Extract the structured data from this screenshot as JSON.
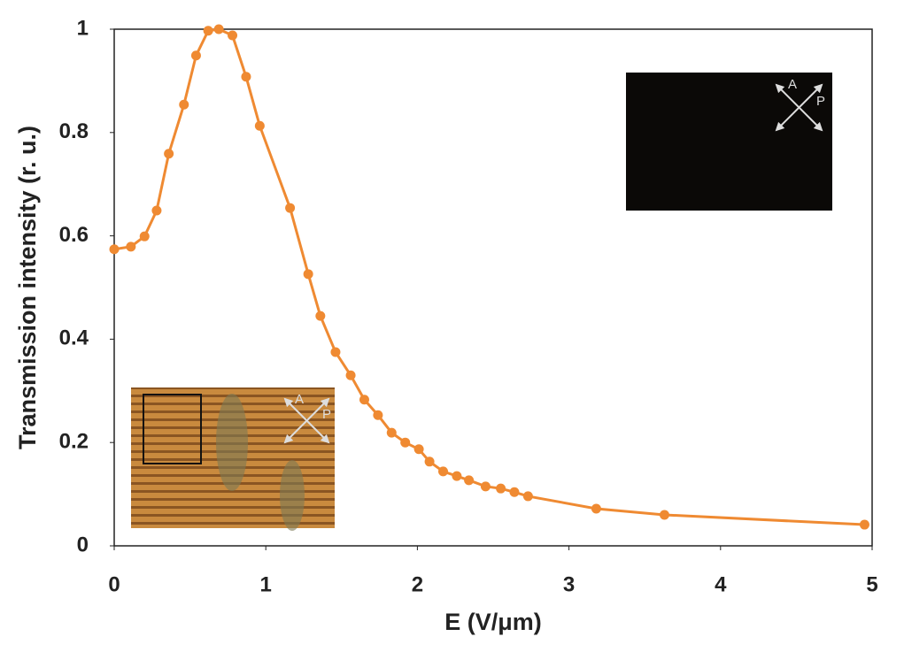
{
  "chart_data": {
    "type": "line",
    "x_label": "E (V/μm)",
    "y_label": "Transmission intensity (r. u.)",
    "x": [
      0,
      0.11,
      0.2,
      0.28,
      0.36,
      0.46,
      0.54,
      0.62,
      0.69,
      0.78,
      0.87,
      0.96,
      1.16,
      1.28,
      1.36,
      1.46,
      1.56,
      1.65,
      1.74,
      1.83,
      1.92,
      2.01,
      2.08,
      2.17,
      2.26,
      2.34,
      2.45,
      2.55,
      2.64,
      2.73,
      3.18,
      3.63,
      4.95
    ],
    "values": [
      0.574,
      0.579,
      0.599,
      0.649,
      0.759,
      0.854,
      0.949,
      0.997,
      1.0,
      0.988,
      0.908,
      0.813,
      0.654,
      0.526,
      0.445,
      0.375,
      0.33,
      0.283,
      0.253,
      0.219,
      0.2,
      0.187,
      0.163,
      0.144,
      0.135,
      0.127,
      0.115,
      0.111,
      0.104,
      0.096,
      0.072,
      0.06,
      0.041
    ],
    "color": "#ef8a32",
    "xlim": [
      0,
      5
    ],
    "xticks": [
      0,
      1,
      2,
      3,
      4,
      5
    ],
    "ylim": [
      0,
      1
    ],
    "yticks": [
      0,
      0.2,
      0.4,
      0.6,
      0.8,
      1
    ],
    "grid": false,
    "annotations": [
      "A",
      "P",
      "A",
      "P"
    ]
  }
}
